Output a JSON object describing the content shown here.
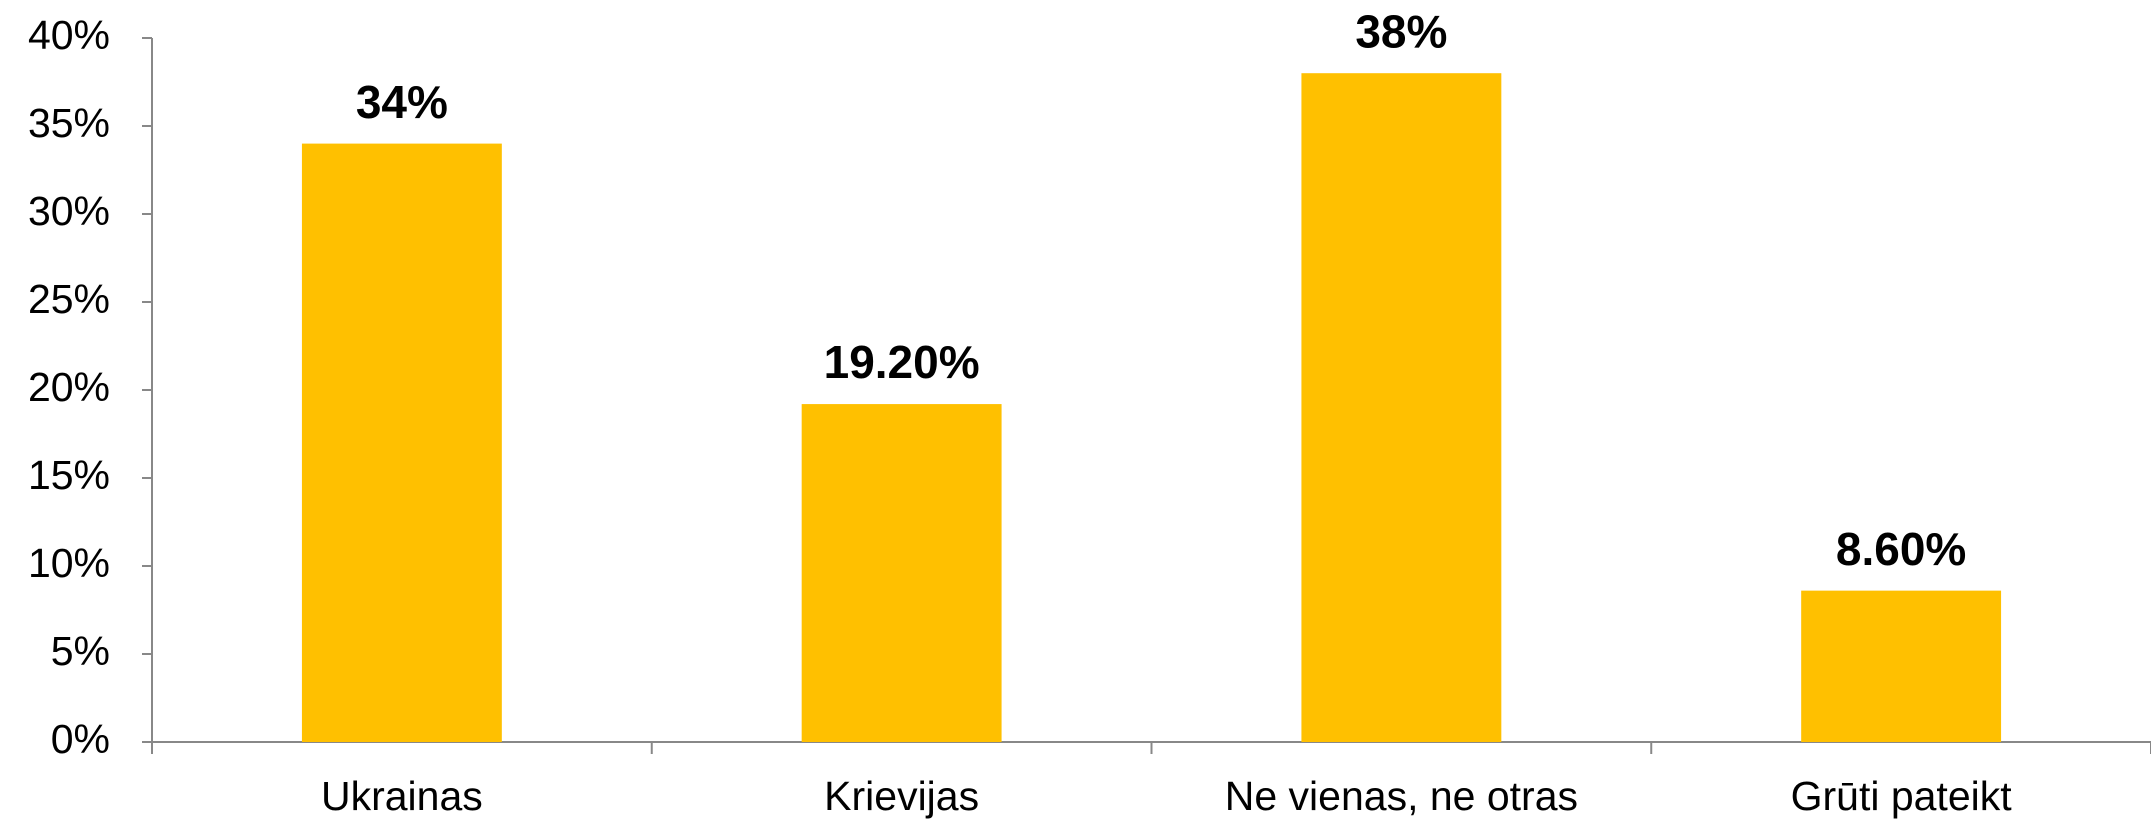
{
  "chart_data": {
    "type": "bar",
    "categories": [
      "Ukrainas",
      "Krievijas",
      "Ne vienas, ne otras",
      "Grūti pateikt"
    ],
    "values": [
      34,
      19.2,
      38,
      8.6
    ],
    "value_labels": [
      "34%",
      "19.20%",
      "38%",
      "8.60%"
    ],
    "color": "#ffc000",
    "ylim": [
      0,
      40
    ],
    "yticks": [
      {
        "value": 0,
        "label": "0%"
      },
      {
        "value": 5,
        "label": "5%"
      },
      {
        "value": 10,
        "label": "10%"
      },
      {
        "value": 15,
        "label": "15%"
      },
      {
        "value": 20,
        "label": "20%"
      },
      {
        "value": 25,
        "label": "25%"
      },
      {
        "value": 30,
        "label": "30%"
      },
      {
        "value": 35,
        "label": "35%"
      },
      {
        "value": 40,
        "label": "40%"
      }
    ],
    "grid": false
  }
}
